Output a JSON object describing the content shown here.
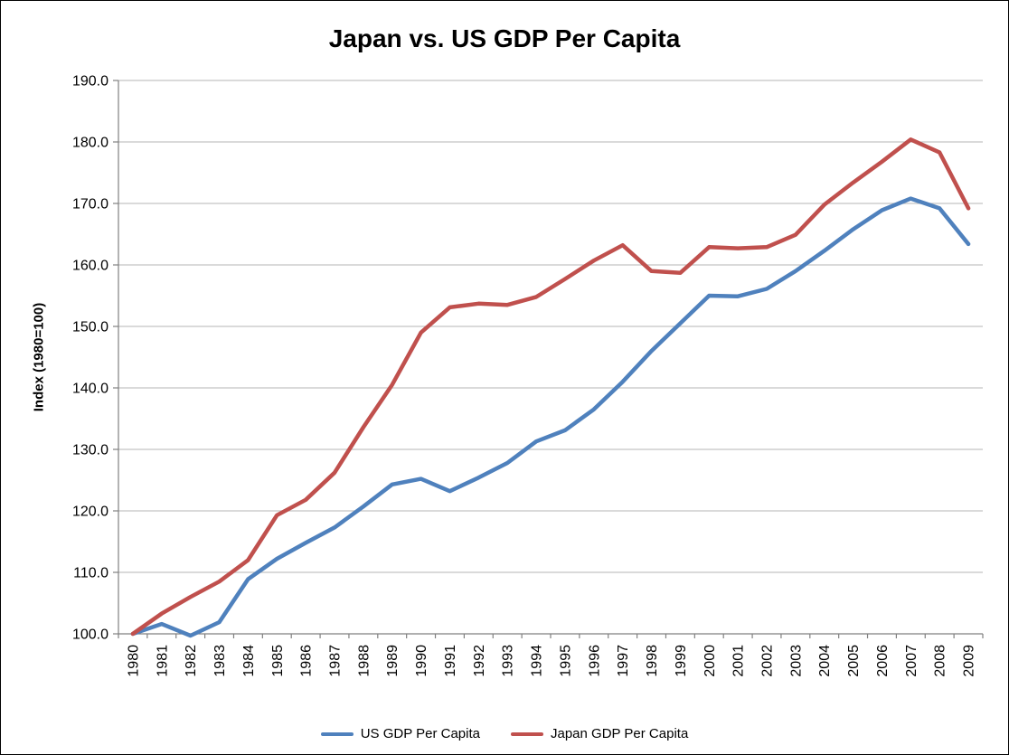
{
  "title": "Japan vs. US GDP Per Capita",
  "chart_data": {
    "type": "line",
    "title": "Japan vs. US GDP Per Capita",
    "xlabel": "",
    "ylabel": "Index (1980=100)",
    "ylim": [
      100,
      190
    ],
    "ytick_step": 10,
    "ytick_decimals": 1,
    "grid": true,
    "legend_position": "bottom",
    "categories": [
      "1980",
      "1981",
      "1982",
      "1983",
      "1984",
      "1985",
      "1986",
      "1987",
      "1988",
      "1989",
      "1990",
      "1991",
      "1992",
      "1993",
      "1994",
      "1995",
      "1996",
      "1997",
      "1998",
      "1999",
      "2000",
      "2001",
      "2002",
      "2003",
      "2004",
      "2005",
      "2006",
      "2007",
      "2008",
      "2009"
    ],
    "series": [
      {
        "name": "US GDP Per Capita",
        "color": "#4F81BD",
        "values": [
          100.0,
          101.6,
          99.7,
          101.9,
          108.9,
          112.2,
          114.8,
          117.3,
          120.7,
          124.3,
          125.2,
          123.2,
          125.4,
          127.8,
          131.3,
          133.1,
          136.5,
          141.0,
          146.0,
          150.5,
          155.0,
          154.9,
          156.1,
          159.0,
          162.3,
          165.8,
          168.9,
          170.8,
          169.2,
          163.4
        ]
      },
      {
        "name": "Japan GDP Per Capita",
        "color": "#C0504D",
        "values": [
          100.0,
          103.3,
          106.0,
          108.5,
          112.0,
          119.3,
          121.8,
          126.2,
          133.6,
          140.5,
          149.0,
          153.1,
          153.7,
          153.5,
          154.8,
          157.7,
          160.7,
          163.2,
          159.0,
          158.7,
          162.9,
          162.7,
          162.9,
          164.9,
          169.8,
          173.4,
          176.8,
          180.4,
          178.3,
          169.2
        ]
      }
    ],
    "axis_color": "#808080",
    "gridline_color": "#C3C3C3",
    "tick_label_color": "#000000"
  }
}
